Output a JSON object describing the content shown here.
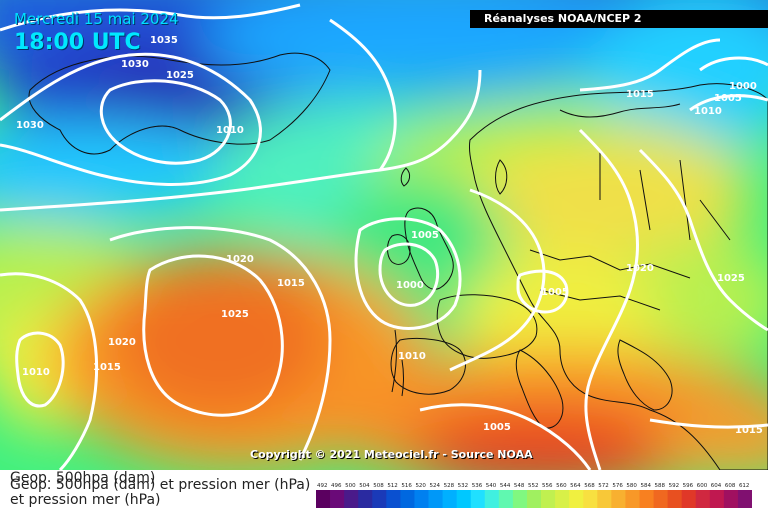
{
  "header": {
    "date": "Mercredi 15 mai 2024",
    "time": "18:00 UTC",
    "source": "Réanalyses NOAA/NCEP 2"
  },
  "footer": {
    "copyright": "Copyright © 2021 Meteociel.fr - Source NOAA",
    "title_line_1": "Geop. 500hpa (dam)",
    "title_line_2": "Geop. 500hpa (dam) et pression mer (hPa)",
    "title_line_3": "et pression mer (hPa)"
  },
  "isobars": [
    {
      "label": "1035"
    },
    {
      "label": "1030"
    },
    {
      "label": "1025"
    },
    {
      "label": "1030"
    },
    {
      "label": "1010"
    },
    {
      "label": "1015"
    },
    {
      "label": "1000"
    },
    {
      "label": "1005"
    },
    {
      "label": "1010"
    },
    {
      "label": "1005"
    },
    {
      "label": "1000"
    },
    {
      "label": "1020"
    },
    {
      "label": "1015"
    },
    {
      "label": "1025"
    },
    {
      "label": "1020"
    },
    {
      "label": "1015"
    },
    {
      "label": "1010"
    },
    {
      "label": "1005"
    },
    {
      "label": "1020"
    },
    {
      "label": "1025"
    },
    {
      "label": "1010"
    },
    {
      "label": "1005"
    },
    {
      "label": "1015"
    }
  ],
  "colorbar": {
    "ticks": [
      "492",
      "496",
      "500",
      "504",
      "508",
      "512",
      "516",
      "520",
      "524",
      "528",
      "532",
      "536",
      "540",
      "544",
      "548",
      "552",
      "556",
      "560",
      "564",
      "568",
      "572",
      "576",
      "580",
      "584",
      "588",
      "592",
      "596",
      "600",
      "604",
      "608",
      "612"
    ],
    "colors": [
      "#5b0060",
      "#6a0a78",
      "#4a1a8a",
      "#2a2aa0",
      "#1a3ab8",
      "#0a50d0",
      "#0068e0",
      "#0080f0",
      "#0098f8",
      "#00b0ff",
      "#00c8ff",
      "#20e0ff",
      "#40f0e0",
      "#60f8b0",
      "#80f880",
      "#a0f060",
      "#c0f050",
      "#d8f048",
      "#f0f040",
      "#f8e040",
      "#f8c838",
      "#f8b030",
      "#f89828",
      "#f88020",
      "#f06820",
      "#e85020",
      "#e03828",
      "#d02840",
      "#c01850",
      "#a01060",
      "#801070"
    ]
  },
  "colors": {
    "legend_text": "#222222",
    "isoline": "#ffffff"
  }
}
